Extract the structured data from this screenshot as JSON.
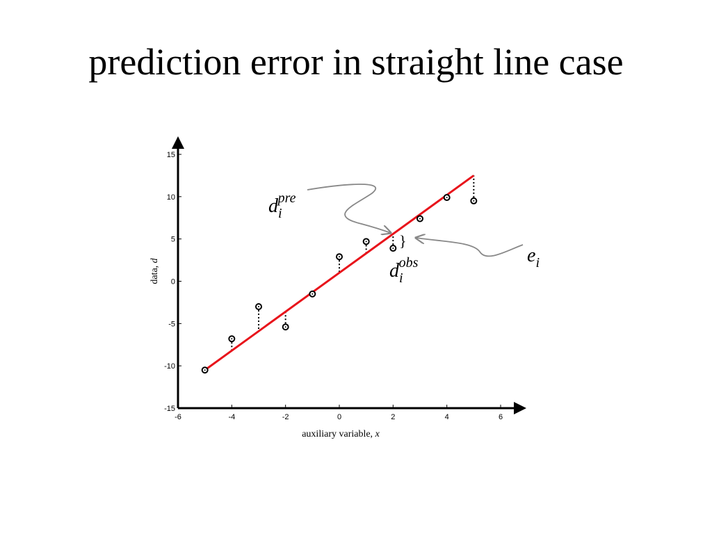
{
  "slide": {
    "title": "prediction error in straight line case"
  },
  "chart_data": {
    "type": "scatter",
    "xlim": [
      -6,
      6
    ],
    "ylim": [
      -15,
      15
    ],
    "xticks": [
      -6,
      -4,
      -2,
      0,
      2,
      4,
      6
    ],
    "yticks": [
      -15,
      -10,
      -5,
      0,
      5,
      10,
      15
    ],
    "xlabel": "auxiliary variable, ",
    "xlabel_var": "x",
    "ylabel": "data, ",
    "ylabel_var": "d",
    "grid": false,
    "fit_line": {
      "x": [
        -5,
        5
      ],
      "y": [
        -10.5,
        12.5
      ],
      "color": "#e8141b"
    },
    "observations": {
      "x": [
        -5,
        -4,
        -3,
        -2,
        -1,
        0,
        1,
        2,
        3,
        4,
        5
      ],
      "y": [
        -10.5,
        -6.8,
        -3.0,
        -5.4,
        -1.5,
        2.9,
        4.7,
        3.9,
        7.4,
        9.9,
        9.5
      ]
    },
    "annotations": {
      "d_pre": {
        "base": "d",
        "sub": "i",
        "sup": "pre"
      },
      "d_obs": {
        "base": "d",
        "sub": "i",
        "sup": "obs"
      },
      "e": {
        "base": "e",
        "sub": "i"
      },
      "brace": "}"
    },
    "colors": {
      "line": "#e8141b",
      "arrow": "#888888",
      "axis": "#000000"
    }
  }
}
